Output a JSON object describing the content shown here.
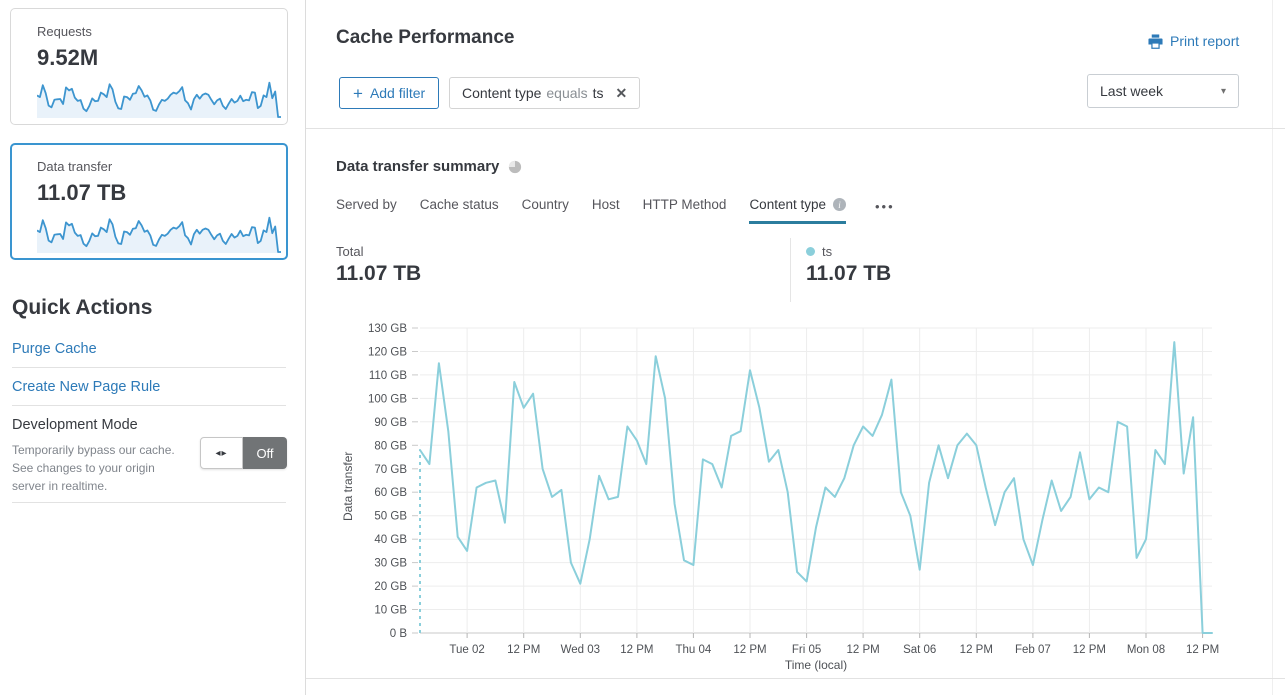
{
  "sidebar": {
    "cards": [
      {
        "label": "Requests",
        "value": "9.52M",
        "selected": false
      },
      {
        "label": "Data transfer",
        "value": "11.07 TB",
        "selected": true
      }
    ],
    "quick_actions": {
      "title": "Quick Actions",
      "links": [
        {
          "label": "Purge Cache"
        },
        {
          "label": "Create New Page Rule"
        }
      ],
      "dev_mode": {
        "title": "Development Mode",
        "description": "Temporarily bypass our cache. See changes to your origin server in realtime.",
        "toggle_state": "Off",
        "toggle_arrows": "◂▸"
      }
    }
  },
  "header": {
    "title": "Cache Performance",
    "print_label": "Print report",
    "time_range_selected": "Last week",
    "caret": "▾"
  },
  "filters": {
    "add_label": "Add filter",
    "plus": "+",
    "chip": {
      "field": "Content type",
      "operator": "equals",
      "value": "ts",
      "close": "✕"
    }
  },
  "summary": {
    "title": "Data transfer summary",
    "tabs": [
      {
        "label": "Served by",
        "active": false,
        "has_info": false
      },
      {
        "label": "Cache status",
        "active": false,
        "has_info": false
      },
      {
        "label": "Country",
        "active": false,
        "has_info": false
      },
      {
        "label": "Host",
        "active": false,
        "has_info": false
      },
      {
        "label": "HTTP Method",
        "active": false,
        "has_info": false
      },
      {
        "label": "Content type",
        "active": true,
        "has_info": true
      }
    ],
    "info_glyph": "i",
    "overflow_ellipsis": "•••",
    "total_label": "Total",
    "total_value": "11.07 TB",
    "series_label": "ts",
    "series_value": "11.07 TB"
  },
  "chart_data": {
    "type": "line",
    "title": "Data transfer summary",
    "xlabel": "Time (local)",
    "ylabel": "Data transfer",
    "unit": "GB",
    "ylim": [
      0,
      130
    ],
    "ytick_step": 10,
    "y_tick_labels": [
      "0 B",
      "10 GB",
      "20 GB",
      "30 GB",
      "40 GB",
      "50 GB",
      "60 GB",
      "70 GB",
      "80 GB",
      "90 GB",
      "100 GB",
      "110 GB",
      "120 GB",
      "130 GB"
    ],
    "x_tick_labels": [
      "Tue 02",
      "12 PM",
      "Wed 03",
      "12 PM",
      "Thu 04",
      "12 PM",
      "Fri 05",
      "12 PM",
      "Sat 06",
      "12 PM",
      "Feb 07",
      "12 PM",
      "Mon 08",
      "12 PM"
    ],
    "tick_hours": [
      10,
      22,
      34,
      46,
      58,
      70,
      82,
      94,
      106,
      118,
      130,
      142,
      154,
      166
    ],
    "x_start_hours": 0,
    "x_end_hours": 168,
    "x_hours_step": 2,
    "grid": true,
    "legend_position": "top-right",
    "start_dashed_from_zero": true,
    "series": [
      {
        "name": "ts",
        "color": "#8bcfdb",
        "values_gb": [
          78,
          72,
          115,
          86,
          41,
          35,
          62,
          64,
          65,
          47,
          107,
          96,
          102,
          70,
          58,
          61,
          30,
          21,
          40,
          67,
          57,
          58,
          88,
          82,
          72,
          118,
          100,
          55,
          31,
          29,
          74,
          72,
          62,
          84,
          86,
          112,
          96,
          73,
          78,
          60,
          26,
          22,
          45,
          62,
          58,
          66,
          80,
          88,
          84,
          93,
          108,
          60,
          50,
          27,
          64,
          80,
          66,
          80,
          85,
          80,
          62,
          46,
          60,
          66,
          40,
          29,
          48,
          65,
          52,
          58,
          77,
          57,
          62,
          60,
          90,
          88,
          32,
          40,
          78,
          72,
          124,
          68,
          92,
          0,
          0
        ]
      }
    ],
    "sparkline_note": "sidebar card sparklines share the shape of the ts series"
  },
  "colors": {
    "accent_blue": "#2d7ab8",
    "chart_line": "#8bcfdb",
    "sparkline_stroke": "#3d95cf",
    "sparkline_fill": "#e9f2fa",
    "active_tab_underline": "#2b7d9e",
    "card_selected_border": "#3a95d0",
    "toggle_off_bg": "#717476",
    "grid_line": "#ededed",
    "axis_line": "#c9c9c9"
  }
}
